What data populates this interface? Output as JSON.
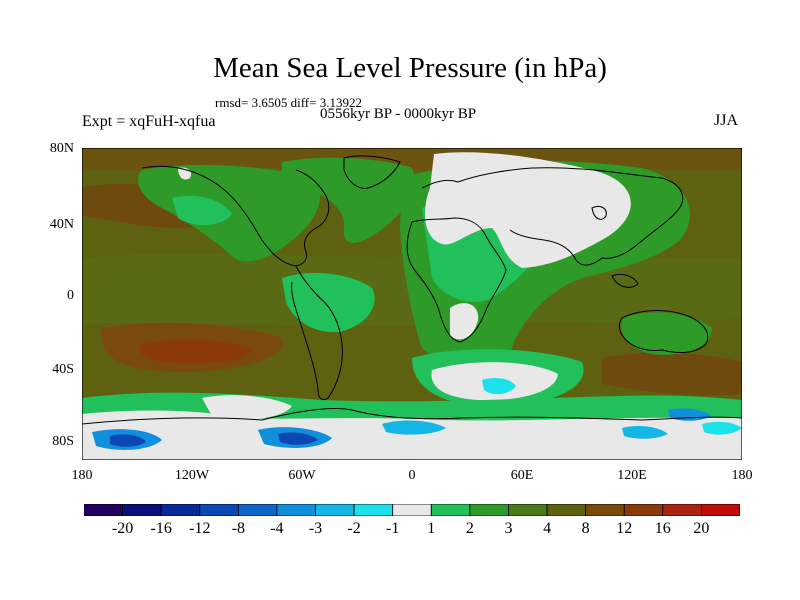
{
  "title": "Mean Sea Level Pressure (in hPa)",
  "stats": "rmsd= 3.6505 diff= 3.13922",
  "period": "0556kyr BP - 0000kyr BP",
  "experiment": "Expt = xqFuH-xqfua",
  "season": "JJA",
  "lat_labels": [
    "80N",
    "40N",
    "0",
    "40S",
    "80S"
  ],
  "lon_labels": [
    "180",
    "120W",
    "60W",
    "0",
    "60E",
    "120E",
    "180"
  ],
  "colorbar": {
    "colors": [
      "#200060",
      "#0a0f7a",
      "#0a2a9a",
      "#0c48b4",
      "#0e66c8",
      "#1090dc",
      "#14b6e6",
      "#1ce0ea",
      "#e8e8e8",
      "#22c05a",
      "#2e9a28",
      "#4a7a18",
      "#5e6210",
      "#7a4a0c",
      "#8c3a0a",
      "#a82410",
      "#c00c08"
    ],
    "labels": [
      "-20",
      "-16",
      "-12",
      "-8",
      "-4",
      "-3",
      "-2",
      "-1",
      "1",
      "2",
      "3",
      "4",
      "8",
      "12",
      "16",
      "20"
    ]
  }
}
